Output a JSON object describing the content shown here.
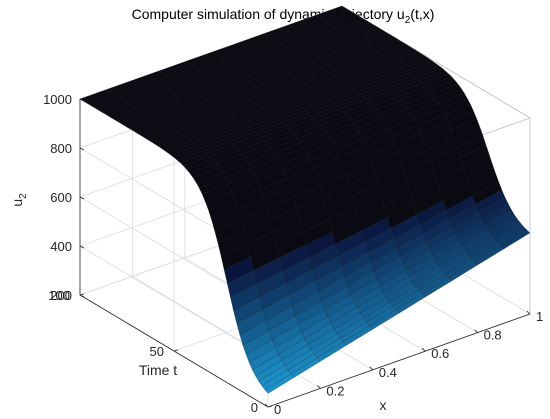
{
  "chart_data": {
    "type": "surface",
    "title": "Computer simulation of dynamic trajectory  u",
    "title_subscript": "2",
    "title_suffix": "(t,x)",
    "xlabel": "x",
    "ylabel": "Time t",
    "zlabel": "u",
    "zlabel_subscript": "2",
    "xlim": [
      0,
      1
    ],
    "ylim": [
      0,
      100
    ],
    "zlim": [
      200,
      1000
    ],
    "x_ticks": [
      "0",
      "0.2",
      "0.4",
      "0.6",
      "0.8",
      "1"
    ],
    "y_ticks": [
      "0",
      "50",
      "100"
    ],
    "z_ticks": [
      "200",
      "400",
      "600",
      "800",
      "1000"
    ],
    "grid": true,
    "colormap": "parula-dark",
    "surface": {
      "description_values": {
        "u_at_t0": 1000,
        "u_at_t100_min": 230,
        "u_at_t100_max": 515
      }
    }
  }
}
